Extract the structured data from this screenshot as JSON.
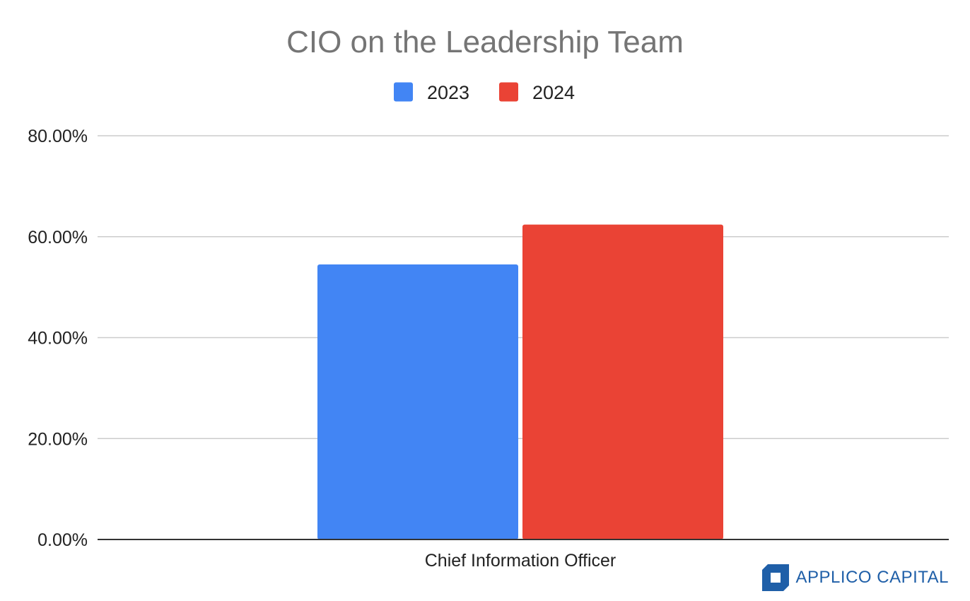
{
  "chart_data": {
    "type": "bar",
    "title": "CIO on the Leadership Team",
    "categories": [
      "Chief Information Officer"
    ],
    "series": [
      {
        "name": "2023",
        "values": [
          0.545
        ],
        "color": "#4285f4"
      },
      {
        "name": "2024",
        "values": [
          0.624
        ],
        "color": "#ea4335"
      }
    ],
    "ylim": [
      0,
      0.8
    ],
    "yticks": [
      0,
      0.2,
      0.4,
      0.6,
      0.8
    ],
    "ytick_labels": [
      "0.00%",
      "20.00%",
      "40.00%",
      "60.00%",
      "80.00%"
    ],
    "xlabel": "",
    "ylabel": "",
    "grid": true,
    "legend_position": "top-center"
  },
  "brand": {
    "name": "APPLICO CAPITAL",
    "logo_icon": "applico-logo-icon",
    "color": "#1f5fa8"
  }
}
